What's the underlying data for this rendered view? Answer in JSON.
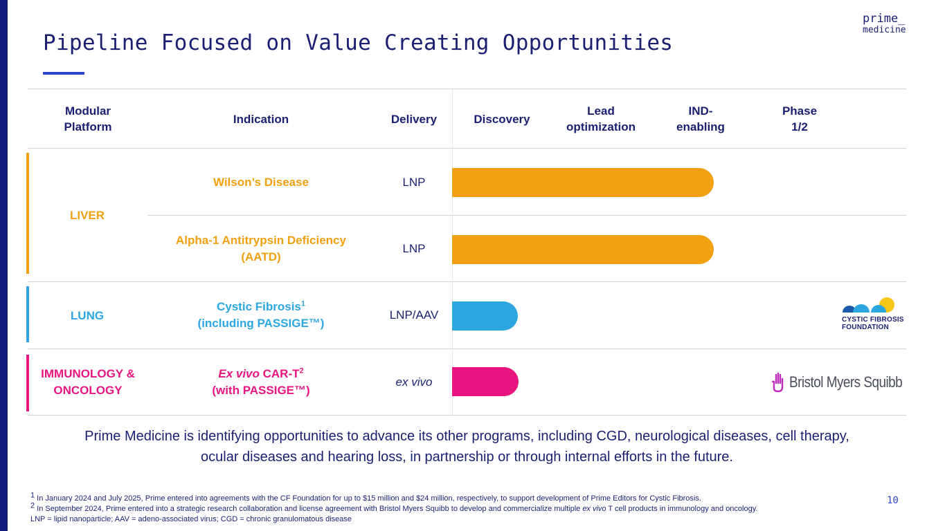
{
  "title": "Pipeline Focused on Value Creating Opportunities",
  "logo": {
    "line1": "prime_",
    "line2": "medicine"
  },
  "headers": {
    "platform_l1": "Modular",
    "platform_l2": "Platform",
    "indication": "Indication",
    "delivery": "Delivery",
    "discovery": "Discovery",
    "lead_l1": "Lead",
    "lead_l2": "optimization",
    "ind_l1": "IND-",
    "ind_l2": "enabling",
    "phase_l1": "Phase",
    "phase_l2": "1/2"
  },
  "rows": [
    {
      "indication": "Wilson’s Disease",
      "delivery": "LNP",
      "stage": "IND-enabling"
    },
    {
      "indication_l1": "Alpha-1 Antitrypsin Deficiency",
      "indication_l2": "(AATD)",
      "delivery": "LNP",
      "stage": "IND-enabling"
    },
    {
      "indication_l1": "Cystic Fibrosis",
      "indication_l1_sup": "1",
      "indication_l2": "(including PASSIGE™)",
      "delivery": "LNP/AAV",
      "stage": "Discovery",
      "partner": "CYSTIC FIBROSIS FOUNDATION"
    },
    {
      "indication_l1_italic": "Ex vivo",
      "indication_l1": " CAR-T",
      "indication_l1_sup": "2",
      "indication_l2": "(with PASSIGE™)",
      "delivery": "ex vivo",
      "stage": "Discovery",
      "partner": "Bristol Myers Squibb"
    }
  ],
  "platforms": {
    "liver": "LIVER",
    "lung": "LUNG",
    "immuno_l1": "IMMUNOLOGY &",
    "immuno_l2": "ONCOLOGY"
  },
  "partners": {
    "cff_l1": "CYSTIC FIBROSIS",
    "cff_l2": "FOUNDATION",
    "bms": "Bristol Myers Squibb"
  },
  "colors": {
    "liver": "#f0a011",
    "lung": "#2ca6e0",
    "immuno": "#e8147f",
    "navy": "#1a1f71",
    "accent": "#2d44c8"
  },
  "summary": {
    "line1": "Prime Medicine is identifying opportunities to advance its other programs, including CGD, neurological diseases, cell therapy,",
    "line2": "ocular diseases and hearing loss, in partnership or through internal efforts in the future."
  },
  "footnotes": {
    "f1_mark": "1",
    "f1": " In January 2024 and July 2025, Prime entered into agreements with the CF Foundation for up to $15 million and $24 million, respectively, to support development of Prime Editors for Cystic Fibrosis.",
    "f2_mark": "2",
    "f2_pre": " In September 2024, Prime entered into a strategic research collaboration and license agreement with Bristol Myers Squibb to develop and commercialize multiple ",
    "f2_italic": "ex vivo",
    "f2_post": " T cell products in immunology and oncology.",
    "f3": "LNP = lipid nanoparticle; AAV = adeno-associated virus; CGD = chronic granulomatous disease"
  },
  "page_number": "10"
}
